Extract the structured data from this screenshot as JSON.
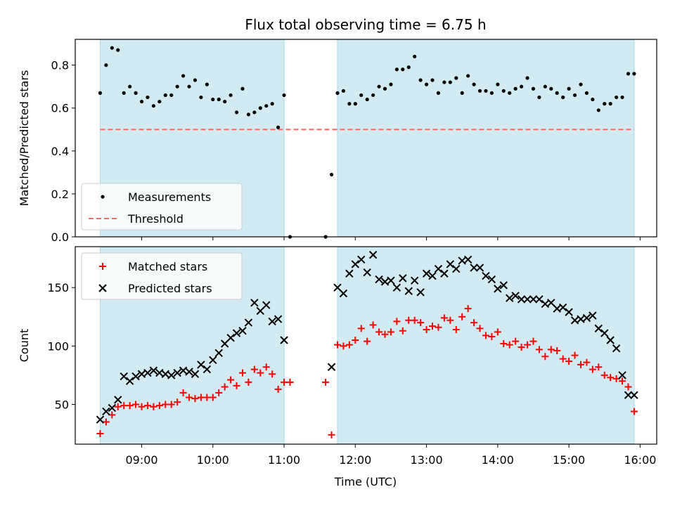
{
  "chart_data": {
    "type": "scatter",
    "title": "Flux total observing time = 6.75 h",
    "xlabel": "Time (UTC)",
    "x_ticks": [
      "09:00",
      "10:00",
      "11:00",
      "12:00",
      "13:00",
      "14:00",
      "15:00",
      "16:00"
    ],
    "colors": {
      "shade": "#add8e6",
      "threshold": "#ff6666",
      "measurements": "#000000",
      "matched": "#ff0000",
      "predicted": "#000000"
    },
    "panels": [
      {
        "id": "top",
        "ylabel": "Matched/Predicted stars",
        "ylim": [
          0,
          0.92
        ],
        "y_ticks": [
          "0.0",
          "0.2",
          "0.4",
          "0.6",
          "0.8"
        ],
        "shaded_intervals": [
          [
            "08:25",
            "11:00"
          ],
          [
            "11:45",
            "15:55"
          ]
        ],
        "legend": {
          "placement": "lower-left",
          "entries": [
            "Measurements",
            "Threshold"
          ]
        },
        "threshold": {
          "name": "Threshold",
          "y": 0.5,
          "x_range": [
            "08:25",
            "15:55"
          ]
        },
        "series": [
          {
            "name": "Measurements",
            "marker": "dot",
            "x": [
              "08:25",
              "08:30",
              "08:35",
              "08:40",
              "08:45",
              "08:50",
              "08:55",
              "09:00",
              "09:05",
              "09:10",
              "09:15",
              "09:20",
              "09:25",
              "09:30",
              "09:35",
              "09:40",
              "09:45",
              "09:50",
              "09:55",
              "10:00",
              "10:05",
              "10:10",
              "10:15",
              "10:20",
              "10:25",
              "10:30",
              "10:35",
              "10:40",
              "10:45",
              "10:50",
              "10:55",
              "11:00",
              "11:05",
              "11:35",
              "11:40",
              "11:45",
              "11:50",
              "11:55",
              "12:00",
              "12:05",
              "12:10",
              "12:15",
              "12:20",
              "12:25",
              "12:30",
              "12:35",
              "12:40",
              "12:45",
              "12:50",
              "12:55",
              "13:00",
              "13:05",
              "13:10",
              "13:15",
              "13:20",
              "13:25",
              "13:30",
              "13:35",
              "13:40",
              "13:45",
              "13:50",
              "13:55",
              "14:00",
              "14:05",
              "14:10",
              "14:15",
              "14:20",
              "14:25",
              "14:30",
              "14:35",
              "14:40",
              "14:45",
              "14:50",
              "14:55",
              "15:00",
              "15:05",
              "15:10",
              "15:15",
              "15:20",
              "15:25",
              "15:30",
              "15:35",
              "15:40",
              "15:45",
              "15:50",
              "15:55"
            ],
            "y": [
              0.67,
              0.8,
              0.88,
              0.87,
              0.67,
              0.7,
              0.67,
              0.63,
              0.65,
              0.61,
              0.63,
              0.66,
              0.66,
              0.7,
              0.75,
              0.7,
              0.73,
              0.65,
              0.71,
              0.64,
              0.64,
              0.63,
              0.66,
              0.58,
              0.69,
              0.57,
              0.58,
              0.6,
              0.61,
              0.62,
              0.51,
              0.66,
              0.0,
              0.0,
              0.29,
              0.67,
              0.68,
              0.62,
              0.62,
              0.66,
              0.64,
              0.66,
              0.7,
              0.69,
              0.71,
              0.78,
              0.78,
              0.79,
              0.84,
              0.73,
              0.71,
              0.73,
              0.67,
              0.72,
              0.72,
              0.74,
              0.67,
              0.75,
              0.71,
              0.68,
              0.68,
              0.67,
              0.71,
              0.68,
              0.67,
              0.69,
              0.7,
              0.74,
              0.69,
              0.65,
              0.7,
              0.69,
              0.67,
              0.65,
              0.69,
              0.66,
              0.71,
              0.67,
              0.64,
              0.59,
              0.62,
              0.62,
              0.65,
              0.65,
              0.76,
              0.76
            ]
          }
        ]
      },
      {
        "id": "bottom",
        "ylabel": "Count",
        "ylim": [
          16,
          185
        ],
        "y_ticks": [
          "50",
          "100",
          "150"
        ],
        "shaded_intervals": [
          [
            "08:25",
            "11:00"
          ],
          [
            "11:45",
            "15:55"
          ]
        ],
        "legend": {
          "placement": "upper-left",
          "entries": [
            "Matched stars",
            "Predicted stars"
          ]
        },
        "series": [
          {
            "name": "Matched stars",
            "marker": "plus",
            "x": [
              "08:25",
              "08:30",
              "08:35",
              "08:40",
              "08:45",
              "08:50",
              "08:55",
              "09:00",
              "09:05",
              "09:10",
              "09:15",
              "09:20",
              "09:25",
              "09:30",
              "09:35",
              "09:40",
              "09:45",
              "09:50",
              "09:55",
              "10:00",
              "10:05",
              "10:10",
              "10:15",
              "10:20",
              "10:25",
              "10:30",
              "10:35",
              "10:40",
              "10:45",
              "10:50",
              "10:55",
              "11:00",
              "11:05",
              "11:35",
              "11:40",
              "11:45",
              "11:50",
              "11:55",
              "12:00",
              "12:05",
              "12:10",
              "12:15",
              "12:20",
              "12:25",
              "12:30",
              "12:35",
              "12:40",
              "12:45",
              "12:50",
              "12:55",
              "13:00",
              "13:05",
              "13:10",
              "13:15",
              "13:20",
              "13:25",
              "13:30",
              "13:35",
              "13:40",
              "13:45",
              "13:50",
              "13:55",
              "14:00",
              "14:05",
              "14:10",
              "14:15",
              "14:20",
              "14:25",
              "14:30",
              "14:35",
              "14:40",
              "14:45",
              "14:50",
              "14:55",
              "15:00",
              "15:05",
              "15:10",
              "15:15",
              "15:20",
              "15:25",
              "15:30",
              "15:35",
              "15:40",
              "15:45",
              "15:50",
              "15:55"
            ],
            "y": [
              25,
              35,
              41,
              48,
              49,
              49,
              50,
              48,
              49,
              48,
              49,
              50,
              50,
              52,
              60,
              56,
              55,
              56,
              56,
              56,
              60,
              65,
              71,
              66,
              77,
              69,
              80,
              77,
              82,
              76,
              63,
              69,
              69,
              69,
              24,
              101,
              100,
              101,
              105,
              115,
              104,
              118,
              112,
              110,
              112,
              121,
              113,
              122,
              122,
              120,
              114,
              117,
              116,
              124,
              122,
              114,
              125,
              132,
              120,
              115,
              109,
              108,
              112,
              102,
              101,
              104,
              99,
              101,
              104,
              97,
              91,
              97,
              96,
              89,
              87,
              92,
              84,
              86,
              80,
              82,
              75,
              73,
              72,
              70,
              65,
              44
            ]
          },
          {
            "name": "Predicted stars",
            "marker": "cross",
            "x": [
              "08:25",
              "08:30",
              "08:35",
              "08:40",
              "08:45",
              "08:50",
              "08:55",
              "09:00",
              "09:05",
              "09:10",
              "09:15",
              "09:20",
              "09:25",
              "09:30",
              "09:35",
              "09:40",
              "09:45",
              "09:50",
              "09:55",
              "10:00",
              "10:05",
              "10:10",
              "10:15",
              "10:20",
              "10:25",
              "10:30",
              "10:35",
              "10:40",
              "10:45",
              "10:50",
              "10:55",
              "11:00",
              "11:40",
              "11:45",
              "11:50",
              "11:55",
              "12:00",
              "12:05",
              "12:10",
              "12:15",
              "12:20",
              "12:25",
              "12:30",
              "12:35",
              "12:40",
              "12:45",
              "12:50",
              "12:55",
              "13:00",
              "13:05",
              "13:10",
              "13:15",
              "13:20",
              "13:25",
              "13:30",
              "13:35",
              "13:40",
              "13:45",
              "13:50",
              "13:55",
              "14:00",
              "14:05",
              "14:10",
              "14:15",
              "14:20",
              "14:25",
              "14:30",
              "14:35",
              "14:40",
              "14:45",
              "14:50",
              "14:55",
              "15:00",
              "15:05",
              "15:10",
              "15:15",
              "15:20",
              "15:25",
              "15:30",
              "15:35",
              "15:40",
              "15:45",
              "15:50",
              "15:55"
            ],
            "y": [
              37,
              44,
              47,
              54,
              74,
              70,
              74,
              76,
              77,
              79,
              77,
              76,
              75,
              77,
              79,
              78,
              76,
              84,
              80,
              88,
              94,
              102,
              107,
              111,
              113,
              120,
              137,
              130,
              135,
              121,
              123,
              105,
              82,
              150,
              145,
              162,
              170,
              174,
              163,
              178,
              157,
              155,
              156,
              150,
              158,
              147,
              156,
              146,
              162,
              160,
              166,
              162,
              170,
              166,
              173,
              174,
              167,
              167,
              160,
              157,
              149,
              152,
              141,
              143,
              140,
              140,
              140,
              140,
              136,
              137,
              132,
              133,
              129,
              122,
              123,
              124,
              126,
              115,
              111,
              105,
              98,
              75,
              58,
              58
            ]
          }
        ]
      }
    ]
  }
}
